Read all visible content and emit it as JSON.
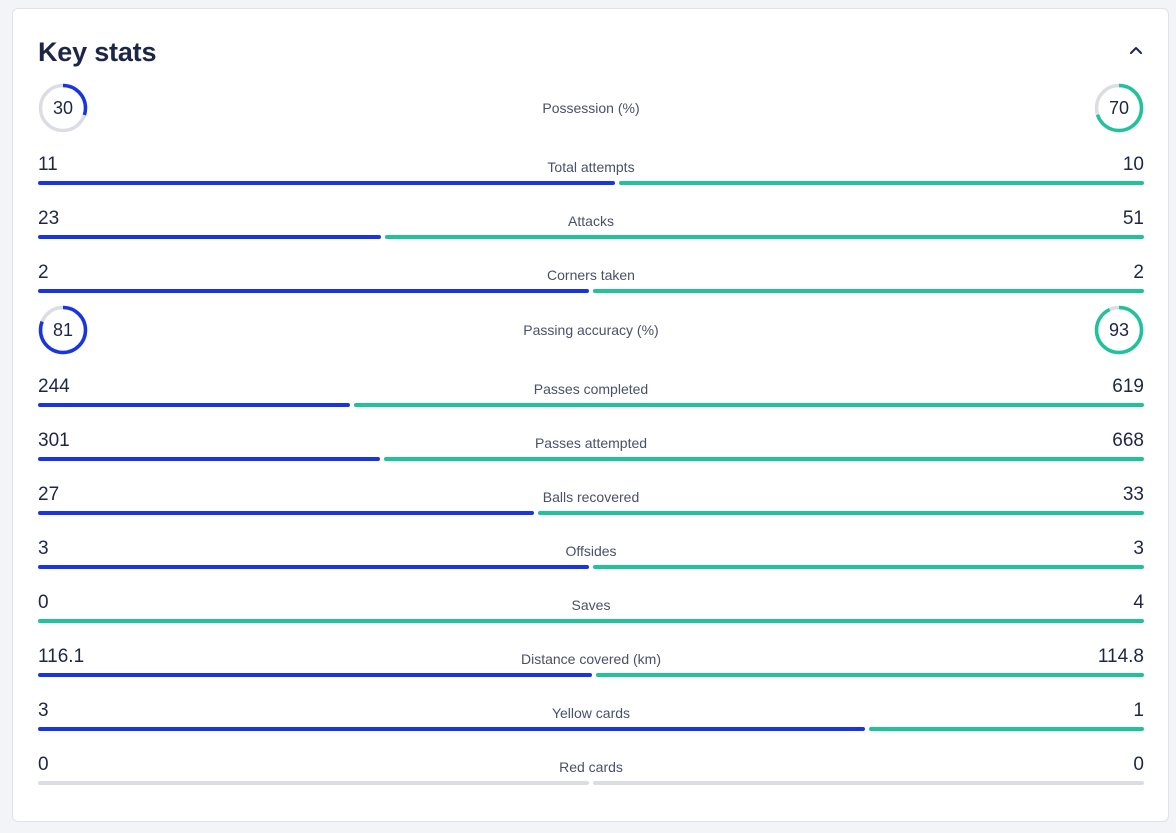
{
  "header": {
    "title": "Key stats",
    "collapse_icon": "chevron-up-icon"
  },
  "colors": {
    "home": "#1a35e0",
    "away": "#1fc29a",
    "track": "#dcdde3",
    "text": "#1e2648"
  },
  "stats": [
    {
      "label": "Possession (%)",
      "home": "30",
      "away": "70",
      "home_num": 30,
      "away_num": 70,
      "type": "ring"
    },
    {
      "label": "Total attempts",
      "home": "11",
      "away": "10",
      "home_num": 11,
      "away_num": 10,
      "type": "bar"
    },
    {
      "label": "Attacks",
      "home": "23",
      "away": "51",
      "home_num": 23,
      "away_num": 51,
      "type": "bar"
    },
    {
      "label": "Corners taken",
      "home": "2",
      "away": "2",
      "home_num": 2,
      "away_num": 2,
      "type": "bar"
    },
    {
      "label": "Passing accuracy (%)",
      "home": "81",
      "away": "93",
      "home_num": 81,
      "away_num": 93,
      "type": "ring"
    },
    {
      "label": "Passes completed",
      "home": "244",
      "away": "619",
      "home_num": 244,
      "away_num": 619,
      "type": "bar"
    },
    {
      "label": "Passes attempted",
      "home": "301",
      "away": "668",
      "home_num": 301,
      "away_num": 668,
      "type": "bar"
    },
    {
      "label": "Balls recovered",
      "home": "27",
      "away": "33",
      "home_num": 27,
      "away_num": 33,
      "type": "bar"
    },
    {
      "label": "Offsides",
      "home": "3",
      "away": "3",
      "home_num": 3,
      "away_num": 3,
      "type": "bar"
    },
    {
      "label": "Saves",
      "home": "0",
      "away": "4",
      "home_num": 0,
      "away_num": 4,
      "type": "bar"
    },
    {
      "label": "Distance covered (km)",
      "home": "116.1",
      "away": "114.8",
      "home_num": 116.1,
      "away_num": 114.8,
      "type": "bar"
    },
    {
      "label": "Yellow cards",
      "home": "3",
      "away": "1",
      "home_num": 3,
      "away_num": 1,
      "type": "bar"
    },
    {
      "label": "Red cards",
      "home": "0",
      "away": "0",
      "home_num": 0,
      "away_num": 0,
      "type": "bar"
    }
  ]
}
